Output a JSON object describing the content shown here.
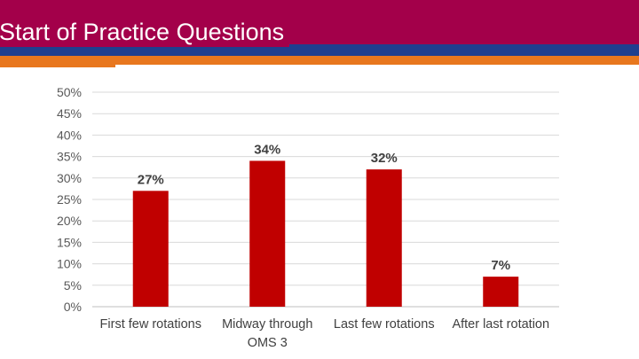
{
  "slide": {
    "title": "Start of Practice Questions"
  },
  "colors": {
    "header": "#a3004a",
    "stripe_blue": "#1f3f8f",
    "stripe_orange": "#e8771e",
    "bar": "#c00000"
  },
  "chart_data": {
    "type": "bar",
    "categories": [
      "First few rotations",
      "Midway through OMS 3",
      "Last few rotations",
      "After last rotation"
    ],
    "category_lines": [
      [
        "First few rotations"
      ],
      [
        "Midway through",
        "OMS 3"
      ],
      [
        "Last few rotations"
      ],
      [
        "After last rotation"
      ]
    ],
    "values": [
      27,
      34,
      32,
      7
    ],
    "data_labels": [
      "27%",
      "34%",
      "32%",
      "7%"
    ],
    "ylim": [
      0,
      50
    ],
    "yticks": [
      "0%",
      "5%",
      "10%",
      "15%",
      "20%",
      "25%",
      "30%",
      "35%",
      "40%",
      "45%",
      "50%"
    ],
    "grid": true,
    "legend": "none",
    "title": "",
    "xlabel": "",
    "ylabel": ""
  }
}
